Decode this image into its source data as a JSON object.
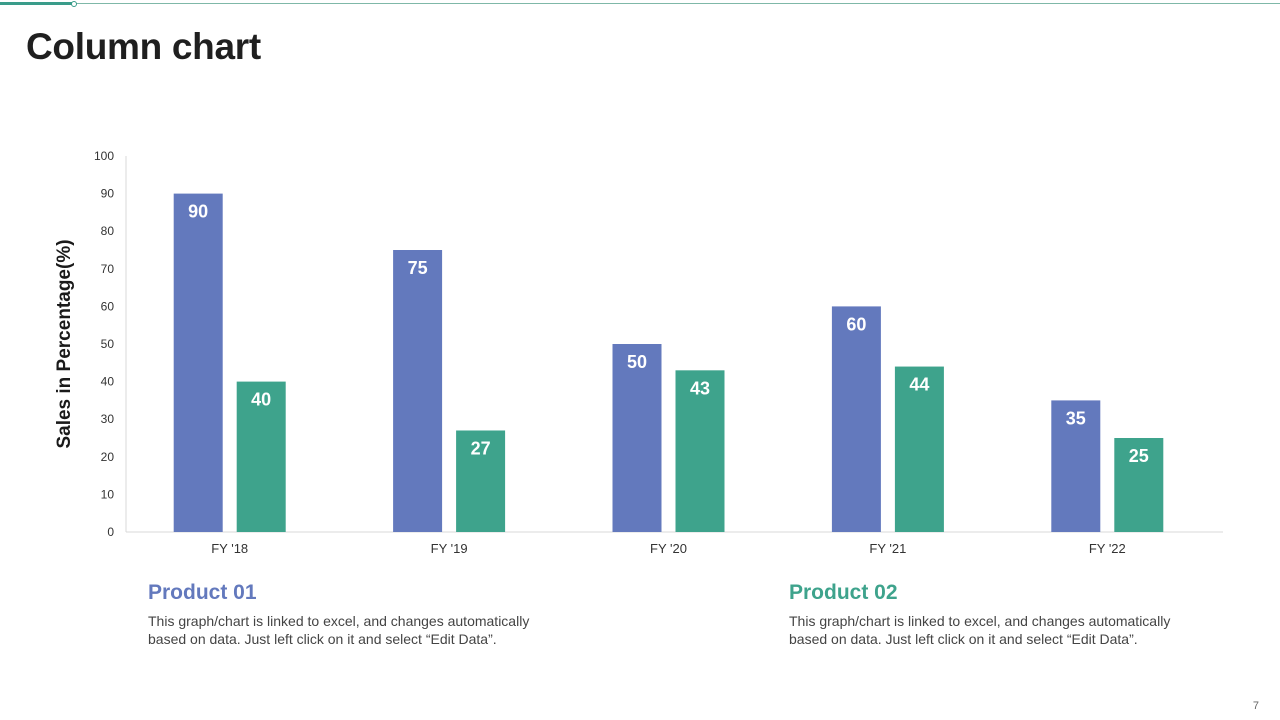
{
  "slide": {
    "title": "Column chart",
    "page_number": "7"
  },
  "colors": {
    "product_01": "#6379bd",
    "product_02": "#3ea38c",
    "accent": "#3a9c8a"
  },
  "products": [
    {
      "title": "Product 01",
      "description": "This graph/chart is linked to excel, and changes automatically based on data. Just left click on it and select “Edit Data”."
    },
    {
      "title": "Product 02",
      "description": "This graph/chart is linked to excel, and changes automatically based on data. Just left click on it and select “Edit Data”."
    }
  ],
  "chart_data": {
    "type": "bar",
    "title": "",
    "xlabel": "",
    "ylabel": "Sales in Percentage(%)",
    "ylim": [
      0,
      100
    ],
    "yticks": [
      0,
      10,
      20,
      30,
      40,
      50,
      60,
      70,
      80,
      90,
      100
    ],
    "categories": [
      "FY '18",
      "FY '19",
      "FY '20",
      "FY '21",
      "FY '22"
    ],
    "series": [
      {
        "name": "Product 01",
        "color": "#6379bd",
        "values": [
          90,
          75,
          50,
          60,
          35
        ]
      },
      {
        "name": "Product 02",
        "color": "#3ea38c",
        "values": [
          40,
          27,
          43,
          44,
          25
        ]
      }
    ],
    "grid": false,
    "legend": "none"
  }
}
